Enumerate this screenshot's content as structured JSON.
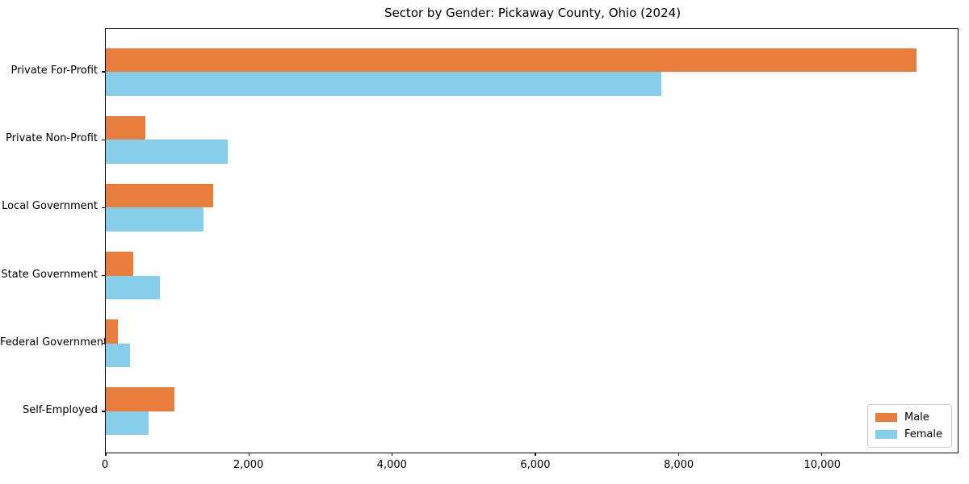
{
  "title": "Sector by Gender: Pickaway County, Ohio (2024)",
  "chart_data": {
    "type": "bar",
    "orientation": "horizontal",
    "title": "Sector by Gender: Pickaway County, Ohio (2024)",
    "categories": [
      "Private For-Profit",
      "Private Non-Profit",
      "Local Government",
      "State Government",
      "Federal Government",
      "Self-Employed"
    ],
    "series": [
      {
        "name": "Male",
        "color": "#e87d3c",
        "values": [
          11330,
          550,
          1500,
          380,
          165,
          960
        ]
      },
      {
        "name": "Female",
        "color": "#87ceeb",
        "values": [
          7760,
          1700,
          1370,
          760,
          340,
          600
        ]
      }
    ],
    "xlabel": "",
    "ylabel": "",
    "xlim": [
      0,
      11900
    ],
    "xticks": [
      0,
      2000,
      4000,
      6000,
      8000,
      10000
    ],
    "xtick_labels": [
      "0",
      "2,000",
      "4,000",
      "6,000",
      "8,000",
      "10,000"
    ],
    "grid": false,
    "legend_position": "lower right",
    "background": "#ffffff",
    "spine_color": "#0a0a0a"
  }
}
